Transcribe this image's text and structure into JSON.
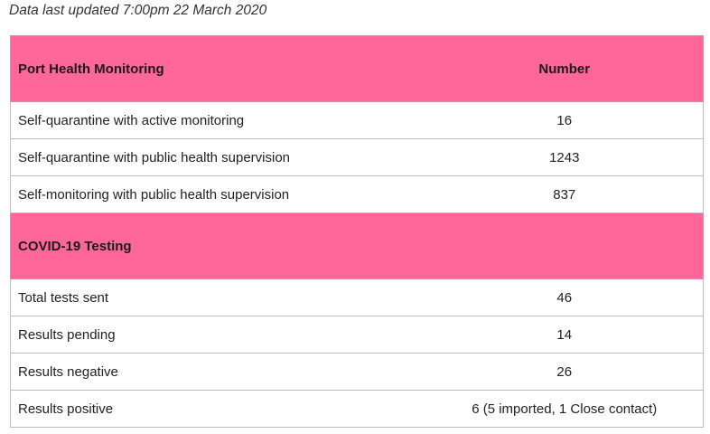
{
  "updated_text": "Data last updated 7:00pm 22 March 2020",
  "sections": [
    {
      "header": "Port Health Monitoring",
      "column_header": "Number",
      "rows": [
        {
          "label": "Self-quarantine with active monitoring",
          "value": "16"
        },
        {
          "label": "Self-quarantine with public health supervision",
          "value": "1243"
        },
        {
          "label": "Self-monitoring with public health supervision",
          "value": "837"
        }
      ]
    },
    {
      "header": "COVID-19 Testing",
      "column_header": "",
      "rows": [
        {
          "label": "Total tests sent",
          "value": "46"
        },
        {
          "label": "Results pending",
          "value": "14"
        },
        {
          "label": "Results negative",
          "value": "26"
        },
        {
          "label": "Results positive",
          "value": "6 (5 imported, 1 Close contact)"
        }
      ]
    }
  ],
  "colors": {
    "header_bg": "#ff6699",
    "border": "#bdbdbd"
  }
}
